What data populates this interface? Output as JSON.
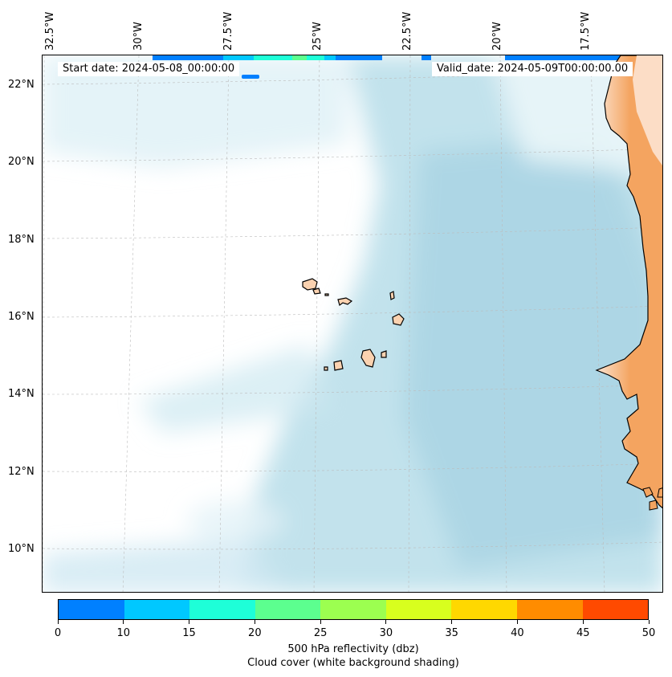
{
  "map": {
    "start_date": "Start date: 2024-05-08_00:00:00",
    "valid_date": "Valid_date: 2024-05-09T00:00:00.00",
    "lon_labels": [
      "32.5°W",
      "30°W",
      "27.5°W",
      "25°W",
      "22.5°W",
      "20°W",
      "17.5°W"
    ],
    "lat_labels": [
      "22°N",
      "20°N",
      "18°N",
      "16°N",
      "14°N",
      "12°N",
      "10°N"
    ],
    "land_color": "#f4a460",
    "island_color": "#fbd2b0",
    "cloud_color": "#add8e6"
  },
  "colorbar": {
    "colors": [
      "#0080ff",
      "#00c8ff",
      "#1effd8",
      "#5cff8f",
      "#9cff50",
      "#d8ff1e",
      "#ffd800",
      "#ff8c00",
      "#ff4a00"
    ],
    "tick_labels": [
      "0",
      "10",
      "15",
      "20",
      "25",
      "30",
      "35",
      "40",
      "45",
      "50"
    ],
    "label": "500 hPa reflectivity (dbz)",
    "sublabel": "Cloud cover (white background shading)"
  }
}
